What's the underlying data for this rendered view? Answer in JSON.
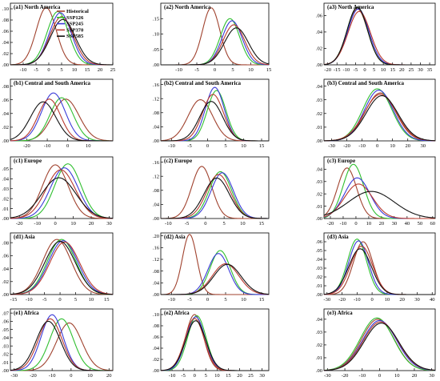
{
  "figure": {
    "legend": [
      "Historical",
      "SSP126",
      "SSP245",
      "SSP370",
      "SSP585"
    ],
    "colors": {
      "Historical": "#a0422e",
      "SSP126": "#2fbf2f",
      "SSP245": "#3a3ad8",
      "SSP370": "#b8392e",
      "SSP585": "#111111"
    }
  },
  "chart_data": [
    {
      "type": "line",
      "title": "(a1) North America",
      "xlim": [
        -15,
        25
      ],
      "ylim": [
        0,
        0.11
      ],
      "xticks": [
        "-10",
        "-5",
        "0",
        "5",
        "10",
        "15",
        "20",
        "25"
      ],
      "yticks": [
        ".00",
        ".02",
        ".04",
        ".06",
        ".08",
        ".10"
      ],
      "series": [
        {
          "name": "Historical",
          "mean": -1,
          "sd": 3.9,
          "peak": 0.102
        },
        {
          "name": "SSP126",
          "mean": 3.5,
          "sd": 4.2,
          "peak": 0.095
        },
        {
          "name": "SSP245",
          "mean": 4.5,
          "sd": 4.3,
          "peak": 0.093
        },
        {
          "name": "SSP370",
          "mean": 5.0,
          "sd": 4.6,
          "peak": 0.086
        },
        {
          "name": "SSP585",
          "mean": 5.5,
          "sd": 4.9,
          "peak": 0.081
        }
      ]
    },
    {
      "type": "line",
      "title": "(a2) North America",
      "xlim": [
        -15,
        15
      ],
      "ylim": [
        0,
        0.2
      ],
      "xticks": [
        "-10",
        "-5",
        "0",
        "5",
        "10",
        "15"
      ],
      "yticks": [
        ".00",
        ".05",
        ".10",
        ".15"
      ],
      "series": [
        {
          "name": "Historical",
          "mean": -1,
          "sd": 2.4,
          "peak": 0.185
        },
        {
          "name": "SSP126",
          "mean": 4.2,
          "sd": 2.7,
          "peak": 0.15
        },
        {
          "name": "SSP245",
          "mean": 4.8,
          "sd": 2.8,
          "peak": 0.143
        },
        {
          "name": "SSP370",
          "mean": 5.3,
          "sd": 3.0,
          "peak": 0.13
        },
        {
          "name": "SSP585",
          "mean": 6.0,
          "sd": 3.3,
          "peak": 0.12
        }
      ]
    },
    {
      "type": "line",
      "title": "(a3) North America",
      "xlim": [
        -22,
        38
      ],
      "ylim": [
        0,
        0.075
      ],
      "xticks": [
        "-20",
        "-15",
        "-10",
        "-5",
        "0",
        "5",
        "10",
        "15",
        "20",
        "25",
        "30",
        "35"
      ],
      "yticks": [
        ".00",
        ".02",
        ".04",
        ".06"
      ],
      "series": [
        {
          "name": "Historical",
          "mean": -4,
          "sd": 5.6,
          "peak": 0.068
        },
        {
          "name": "SSP126",
          "mean": -4,
          "sd": 5.5,
          "peak": 0.07
        },
        {
          "name": "SSP245",
          "mean": -3.5,
          "sd": 5.7,
          "peak": 0.068
        },
        {
          "name": "SSP370",
          "mean": -3,
          "sd": 6.0,
          "peak": 0.065
        },
        {
          "name": "SSP585",
          "mean": -4,
          "sd": 5.5,
          "peak": 0.07
        }
      ]
    },
    {
      "type": "line",
      "title": "(b1) Central and South America",
      "xlim": [
        -28,
        22
      ],
      "ylim": [
        0,
        0.09
      ],
      "xticks": [
        "-20",
        "-10",
        "0",
        "10"
      ],
      "yticks": [
        ".00",
        ".02",
        ".04",
        ".06",
        ".08"
      ],
      "series": [
        {
          "name": "Historical",
          "mean": -1,
          "sd": 6.5,
          "peak": 0.061
        },
        {
          "name": "SSP126",
          "mean": -3,
          "sd": 5.7,
          "peak": 0.063
        },
        {
          "name": "SSP245",
          "mean": -7,
          "sd": 5.8,
          "peak": 0.07
        },
        {
          "name": "SSP370",
          "mean": -9,
          "sd": 5.5,
          "peak": 0.061
        },
        {
          "name": "SSP585",
          "mean": -12,
          "sd": 6.2,
          "peak": 0.057
        }
      ]
    },
    {
      "type": "line",
      "title": "(b2) Central and South America",
      "xlim": [
        -13,
        17
      ],
      "ylim": [
        0,
        0.175
      ],
      "xticks": [
        "-10",
        "-5",
        "0",
        "5",
        "10",
        "15"
      ],
      "yticks": [
        ".00",
        ".04",
        ".08",
        ".12",
        ".16"
      ],
      "series": [
        {
          "name": "Historical",
          "mean": -2,
          "sd": 3.4,
          "peak": 0.117
        },
        {
          "name": "SSP126",
          "mean": 2.5,
          "sd": 2.6,
          "peak": 0.143
        },
        {
          "name": "SSP245",
          "mean": 2,
          "sd": 2.6,
          "peak": 0.152
        },
        {
          "name": "SSP370",
          "mean": 1.5,
          "sd": 2.9,
          "peak": 0.132
        },
        {
          "name": "SSP585",
          "mean": 1,
          "sd": 3.2,
          "peak": 0.112
        }
      ]
    },
    {
      "type": "line",
      "title": "(b3) Central and South America",
      "xlim": [
        -35,
        38
      ],
      "ylim": [
        0,
        0.045
      ],
      "xticks": [
        "-30",
        "-20",
        "-10",
        "0",
        "10",
        "20",
        "30"
      ],
      "yticks": [
        ".00",
        ".01",
        ".02",
        ".03",
        ".04"
      ],
      "series": [
        {
          "name": "Historical",
          "mean": 2,
          "sd": 10,
          "peak": 0.035
        },
        {
          "name": "SSP126",
          "mean": 0,
          "sd": 9.5,
          "peak": 0.038
        },
        {
          "name": "SSP245",
          "mean": 1,
          "sd": 9.5,
          "peak": 0.037
        },
        {
          "name": "SSP370",
          "mean": 2,
          "sd": 10.5,
          "peak": 0.034
        },
        {
          "name": "SSP585",
          "mean": 3,
          "sd": 10.5,
          "peak": 0.033
        }
      ]
    },
    {
      "type": "line",
      "title": "(c1) Europe",
      "xlim": [
        -25,
        32
      ],
      "ylim": [
        0,
        0.062
      ],
      "xticks": [
        "-20",
        "-10",
        "0",
        "10",
        "20",
        "30"
      ],
      "yticks": [
        ".00",
        ".01",
        ".02",
        ".03",
        ".04",
        ".05"
      ],
      "series": [
        {
          "name": "Historical",
          "mean": 0,
          "sd": 7.2,
          "peak": 0.054
        },
        {
          "name": "SSP126",
          "mean": 7,
          "sd": 7.3,
          "peak": 0.055
        },
        {
          "name": "SSP245",
          "mean": 5,
          "sd": 7.7,
          "peak": 0.051
        },
        {
          "name": "SSP370",
          "mean": 3,
          "sd": 8.1,
          "peak": 0.049
        },
        {
          "name": "SSP585",
          "mean": 2,
          "sd": 9.5,
          "peak": 0.041
        }
      ]
    },
    {
      "type": "line",
      "title": "(c2) Europe",
      "xlim": [
        -12,
        17
      ],
      "ylim": [
        0,
        0.175
      ],
      "xticks": [
        "-10",
        "-5",
        "0",
        "5",
        "10",
        "15"
      ],
      "yticks": [
        ".00",
        ".04",
        ".08",
        ".12",
        ".16"
      ],
      "series": [
        {
          "name": "Historical",
          "mean": -1,
          "sd": 2.7,
          "peak": 0.148
        },
        {
          "name": "SSP126",
          "mean": 4,
          "sd": 3.0,
          "peak": 0.133
        },
        {
          "name": "SSP245",
          "mean": 4.5,
          "sd": 3.0,
          "peak": 0.13
        },
        {
          "name": "SSP370",
          "mean": 3.5,
          "sd": 3.2,
          "peak": 0.125
        },
        {
          "name": "SSP585",
          "mean": 3,
          "sd": 3.4,
          "peak": 0.115
        }
      ]
    },
    {
      "type": "line",
      "title": "(c3) Europe",
      "xlim": [
        -25,
        62
      ],
      "ylim": [
        0,
        0.05
      ],
      "xticks": [
        "-20",
        "-10",
        "0",
        "10",
        "20",
        "30",
        "40",
        "50",
        "60"
      ],
      "yticks": [
        ".00",
        ".01",
        ".02",
        ".03",
        ".04"
      ],
      "series": [
        {
          "name": "Historical",
          "mean": -7,
          "sd": 7.5,
          "peak": 0.041
        },
        {
          "name": "SSP126",
          "mean": -2,
          "sd": 8.0,
          "peak": 0.044
        },
        {
          "name": "SSP245",
          "mean": 1,
          "sd": 10,
          "peak": 0.033
        },
        {
          "name": "SSP370",
          "mean": 2,
          "sd": 11,
          "peak": 0.028
        },
        {
          "name": "SSP585",
          "mean": 12,
          "sd": 18,
          "peak": 0.022
        }
      ]
    },
    {
      "type": "line",
      "title": "(d1) Asia",
      "xlim": [
        -16,
        17
      ],
      "ylim": [
        0,
        0.095
      ],
      "xticks": [
        "-15",
        "-10",
        "-5",
        "0",
        "5",
        "10",
        "15"
      ],
      "yticks": [
        ".00",
        ".02",
        ".04",
        ".06",
        ".08"
      ],
      "series": [
        {
          "name": "Historical",
          "mean": -1,
          "sd": 4.6,
          "peak": 0.085
        },
        {
          "name": "SSP126",
          "mean": 0.5,
          "sd": 4.6,
          "peak": 0.085
        },
        {
          "name": "SSP245",
          "mean": 1,
          "sd": 4.7,
          "peak": 0.083
        },
        {
          "name": "SSP370",
          "mean": 1.5,
          "sd": 4.8,
          "peak": 0.081
        },
        {
          "name": "SSP585",
          "mean": 0,
          "sd": 4.9,
          "peak": 0.082
        }
      ]
    },
    {
      "type": "line",
      "title": "(d2) Asia",
      "xlim": [
        -13,
        17
      ],
      "ylim": [
        0,
        0.21
      ],
      "xticks": [
        "-10",
        "-5",
        "0",
        "5",
        "10",
        "15"
      ],
      "yticks": [
        ".00",
        ".04",
        ".08",
        ".12",
        ".16",
        ".20"
      ],
      "series": [
        {
          "name": "Historical",
          "mean": -5,
          "sd": 2.0,
          "peak": 0.205
        },
        {
          "name": "SSP126",
          "mean": 3.5,
          "sd": 2.8,
          "peak": 0.15
        },
        {
          "name": "SSP245",
          "mean": 3,
          "sd": 2.9,
          "peak": 0.14
        },
        {
          "name": "SSP370",
          "mean": 5,
          "sd": 3.7,
          "peak": 0.105
        },
        {
          "name": "SSP585",
          "mean": 5.5,
          "sd": 3.8,
          "peak": 0.103
        }
      ]
    },
    {
      "type": "line",
      "title": "(d3) Asia",
      "xlim": [
        -32,
        42
      ],
      "ylim": [
        0,
        0.07
      ],
      "xticks": [
        "-30",
        "-20",
        "-10",
        "0",
        "10",
        "20",
        "30",
        "40"
      ],
      "yticks": [
        ".00",
        ".01",
        ".02",
        ".03",
        ".04",
        ".05",
        ".06"
      ],
      "series": [
        {
          "name": "Historical",
          "mean": -6,
          "sd": 6.5,
          "peak": 0.06
        },
        {
          "name": "SSP126",
          "mean": -10,
          "sd": 6.3,
          "peak": 0.063
        },
        {
          "name": "SSP245",
          "mean": -9,
          "sd": 6.5,
          "peak": 0.061
        },
        {
          "name": "SSP370",
          "mean": -7,
          "sd": 7.3,
          "peak": 0.055
        },
        {
          "name": "SSP585",
          "mean": -8,
          "sd": 7.6,
          "peak": 0.052
        }
      ]
    },
    {
      "type": "line",
      "title": "(e1) Africa",
      "xlim": [
        -32,
        22
      ],
      "ylim": [
        0,
        0.075
      ],
      "xticks": [
        "-30",
        "-20",
        "-10",
        "0",
        "10",
        "20"
      ],
      "yticks": [
        ".00",
        ".01",
        ".02",
        ".03",
        ".04",
        ".05",
        ".06",
        ".07"
      ],
      "series": [
        {
          "name": "Historical",
          "mean": -1,
          "sd": 6.7,
          "peak": 0.058
        },
        {
          "name": "SSP126",
          "mean": -5,
          "sd": 6.2,
          "peak": 0.063
        },
        {
          "name": "SSP245",
          "mean": -10,
          "sd": 5.8,
          "peak": 0.068
        },
        {
          "name": "SSP370",
          "mean": -11,
          "sd": 6.2,
          "peak": 0.063
        },
        {
          "name": "SSP585",
          "mean": -12,
          "sd": 6.4,
          "peak": 0.06
        }
      ]
    },
    {
      "type": "line",
      "title": "(e2) Africa",
      "xlim": [
        -15,
        33
      ],
      "ylim": [
        0,
        0.11
      ],
      "xticks": [
        "-10",
        "-5",
        "0",
        "5",
        "10",
        "15",
        "20",
        "25",
        "30"
      ],
      "yticks": [
        ".00",
        ".02",
        ".04",
        ".06",
        ".08",
        ".10"
      ],
      "series": [
        {
          "name": "Historical",
          "mean": 0,
          "sd": 4.0,
          "peak": 0.1
        },
        {
          "name": "SSP126",
          "mean": 1,
          "sd": 4.1,
          "peak": 0.098
        },
        {
          "name": "SSP245",
          "mean": 0.5,
          "sd": 4.2,
          "peak": 0.096
        },
        {
          "name": "SSP370",
          "mean": 0,
          "sd": 4.3,
          "peak": 0.093
        },
        {
          "name": "SSP585",
          "mean": 0.5,
          "sd": 4.5,
          "peak": 0.089
        }
      ]
    },
    {
      "type": "line",
      "title": "(e3) Africa",
      "xlim": [
        -32,
        32
      ],
      "ylim": [
        0,
        0.048
      ],
      "xticks": [
        "-30",
        "-20",
        "-10",
        "0",
        "10",
        "20",
        "30"
      ],
      "yticks": [
        ".00",
        ".01",
        ".02",
        ".03",
        ".04"
      ],
      "series": [
        {
          "name": "Historical",
          "mean": -1,
          "sd": 9.5,
          "peak": 0.04
        },
        {
          "name": "SSP126",
          "mean": -1.5,
          "sd": 9.6,
          "peak": 0.041
        },
        {
          "name": "SSP245",
          "mean": 0,
          "sd": 9.8,
          "peak": 0.039
        },
        {
          "name": "SSP370",
          "mean": 0.5,
          "sd": 10,
          "peak": 0.038
        },
        {
          "name": "SSP585",
          "mean": 1,
          "sd": 10,
          "peak": 0.037
        }
      ]
    }
  ]
}
